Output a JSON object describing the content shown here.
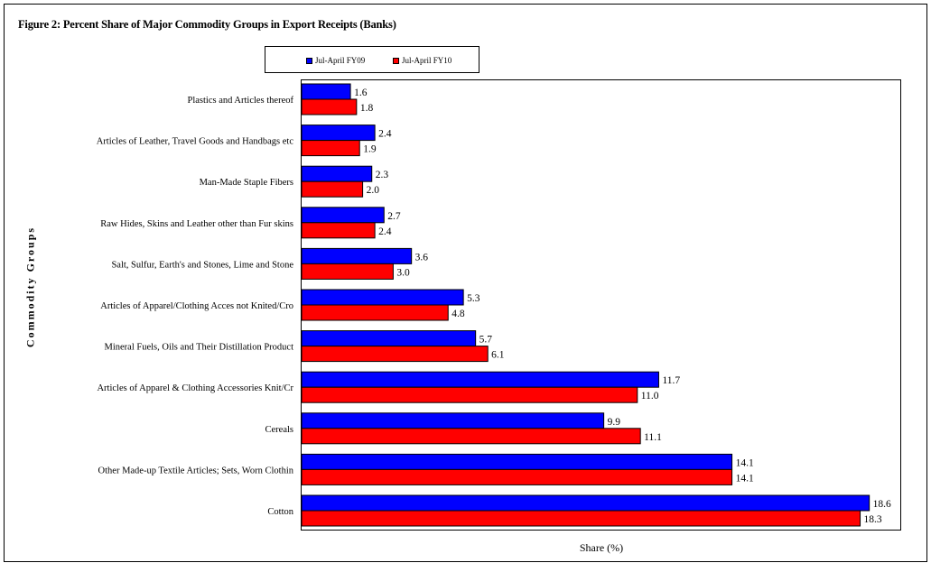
{
  "chart_data": {
    "type": "bar",
    "orientation": "horizontal",
    "title": "Figure 2: Percent Share of Major Commodity Groups in Export Receipts (Banks)",
    "xlabel": "Share (%)",
    "ylabel": "Commodity Groups",
    "xlim": [
      0,
      19
    ],
    "grid": false,
    "legend_position": "top",
    "categories": [
      "Plastics and Articles thereof",
      "Articles of Leather, Travel Goods and Handbags etc",
      "Man-Made Staple Fibers",
      "Raw Hides, Skins and Leather other than Fur skins",
      "Salt, Sulfur, Earth's and Stones, Lime and Stone",
      "Articles of Apparel/Clothing Acces not Knited/Cro",
      "Mineral Fuels, Oils and Their Distillation Product",
      "Articles of Apparel & Clothing Accessories Knit/Cr",
      "Cereals",
      "Other Made-up Textile Articles; Sets, Worn Clothin",
      "Cotton"
    ],
    "series": [
      {
        "name": "Jul-April FY09",
        "color": "#0000FF",
        "values": [
          1.6,
          2.4,
          2.3,
          2.7,
          3.6,
          5.3,
          5.7,
          11.7,
          9.9,
          14.1,
          18.6
        ]
      },
      {
        "name": "Jul-April FY10",
        "color": "#FF0000",
        "values": [
          1.8,
          1.9,
          2.0,
          2.4,
          3.0,
          4.8,
          6.1,
          11.0,
          11.1,
          14.1,
          18.3
        ]
      }
    ]
  }
}
